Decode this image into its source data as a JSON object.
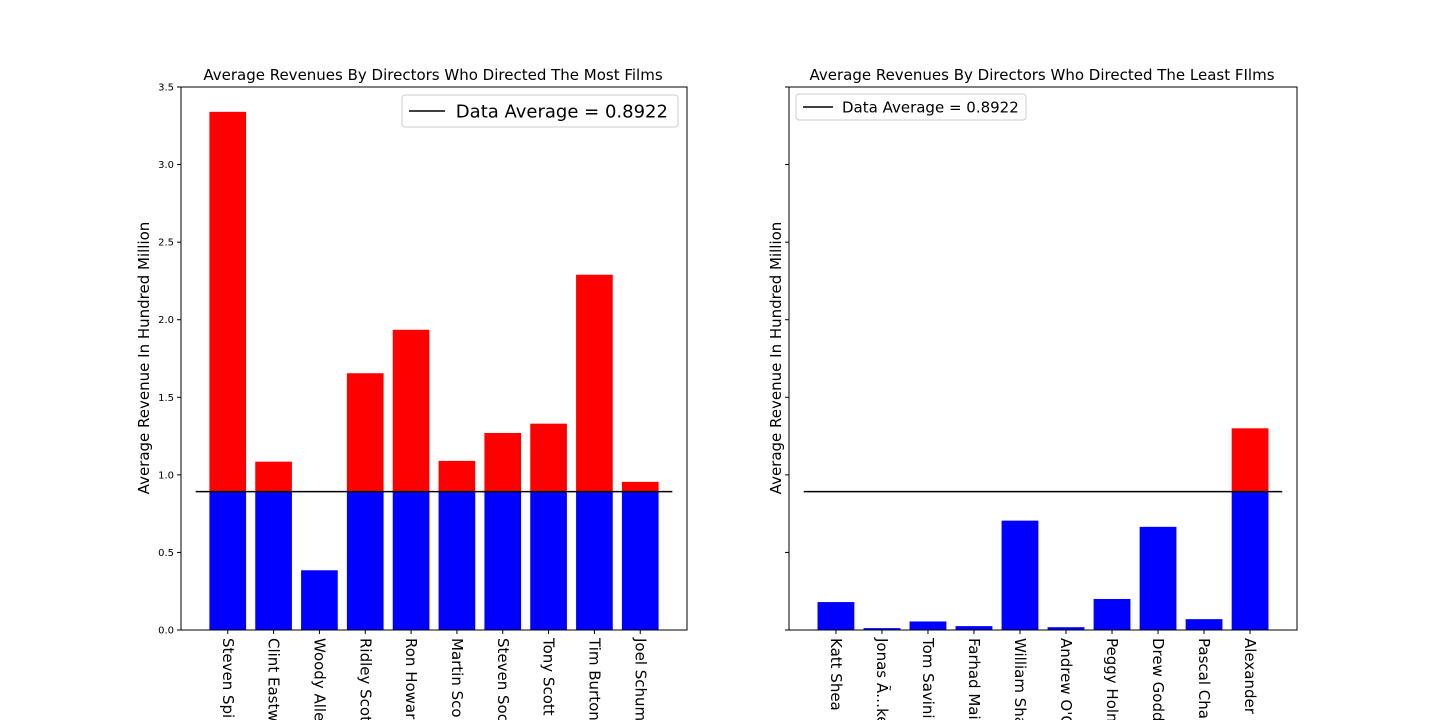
{
  "colors": {
    "above": "#ff0000",
    "below": "#0000ff",
    "average_line": "#000000",
    "legend_border": "#cccccc"
  },
  "chart_data": [
    {
      "type": "bar",
      "title": "Average Revenues By Directors Who Directed The Most Films",
      "ylabel": "Average Revenue In Hundred Million",
      "xlabel": "",
      "ylim": [
        0,
        3.5
      ],
      "yticks": [
        "0.0",
        "0.5",
        "1.0",
        "1.5",
        "2.0",
        "2.5",
        "3.0",
        "3.5"
      ],
      "show_ytick_labels": true,
      "categories": [
        "Steven Spi",
        "Clint Eastw",
        "Woody Alle",
        "Ridley Scot",
        "Ron Howar",
        "Martin Sco",
        "Steven Soc",
        "Tony Scott",
        "Tim Burton",
        "Joel Schum"
      ],
      "values": [
        3.34,
        1.085,
        0.385,
        1.655,
        1.935,
        1.09,
        1.27,
        1.33,
        2.29,
        0.955
      ],
      "average": 0.8922,
      "legend": {
        "label": "Data Average = 0.8922",
        "position": "upper right"
      }
    },
    {
      "type": "bar",
      "title": "Average Revenues By Directors Who Directed The Least FIlms",
      "ylabel": "Average Revenue In Hundred Million",
      "xlabel": "",
      "ylim": [
        0,
        3.5
      ],
      "yticks": [
        "0.0",
        "0.5",
        "1.0",
        "1.5",
        "2.0",
        "2.5",
        "3.0",
        "3.5"
      ],
      "show_ytick_labels": false,
      "categories": [
        "Katt Shea",
        "Jonas Ã…kerl",
        "Tom Savini",
        "Farhad Mai",
        "William Sha",
        "Andrew O'C",
        "Peggy Holm",
        "Drew Godd",
        "Pascal Cha",
        "Alexander"
      ],
      "values": [
        0.18,
        0.012,
        0.055,
        0.025,
        0.705,
        0.018,
        0.2,
        0.665,
        0.07,
        1.3
      ],
      "average": 0.8922,
      "legend": {
        "label": "Data Average = 0.8922",
        "position": "upper left"
      }
    }
  ]
}
